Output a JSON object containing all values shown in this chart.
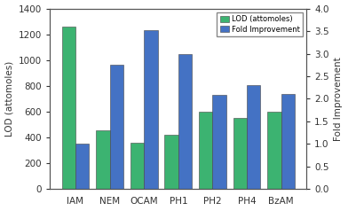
{
  "categories": [
    "IAM",
    "NEM",
    "OCAM",
    "PH1",
    "PH2",
    "PH4",
    "BzAM"
  ],
  "lod_values": [
    1260,
    457,
    357,
    420,
    603,
    549,
    601
  ],
  "fold_improvement": [
    1.0,
    2.76,
    3.53,
    3.0,
    2.09,
    2.3,
    2.1
  ],
  "bar_color_green": "#3cb371",
  "bar_color_blue": "#4472c4",
  "ylabel_left": "LOD (attomoles)",
  "ylabel_right": "Fold Improvement",
  "ylim_left": [
    0,
    1400
  ],
  "ylim_right": [
    0,
    4.0
  ],
  "yticks_left": [
    0,
    200,
    400,
    600,
    800,
    1000,
    1200,
    1400
  ],
  "yticks_right": [
    0.0,
    0.5,
    1.0,
    1.5,
    2.0,
    2.5,
    3.0,
    3.5,
    4.0
  ],
  "legend_labels": [
    "LOD (attomoles)",
    "Fold Improvement"
  ],
  "background_color": "#ffffff",
  "bar_width": 0.4,
  "fontsize": 7.5
}
